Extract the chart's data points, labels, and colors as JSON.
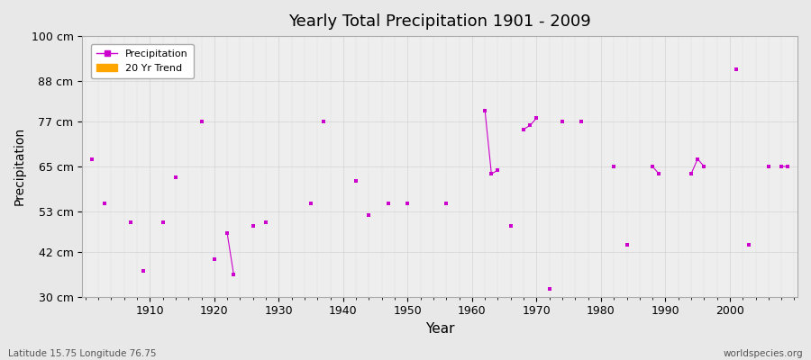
{
  "title": "Yearly Total Precipitation 1901 - 2009",
  "xlabel": "Year",
  "ylabel": "Precipitation",
  "footnote_left": "Latitude 15.75 Longitude 76.75",
  "footnote_right": "worldspecies.org",
  "line_color": "#CC00CC",
  "marker_color": "#CC00CC",
  "trend_color": "#FFA500",
  "bg_color": "#E8E8E8",
  "plot_bg_color": "#EEEEEE",
  "grid_color": "#CCCCCC",
  "ylim": [
    30,
    100
  ],
  "yticks": [
    30,
    42,
    53,
    65,
    77,
    88,
    100
  ],
  "ytick_labels": [
    "30 cm",
    "42 cm",
    "53 cm",
    "65 cm",
    "77 cm",
    "88 cm",
    "100 cm"
  ],
  "years": [
    1901,
    1902,
    1903,
    1904,
    1905,
    1906,
    1907,
    1908,
    1909,
    1910,
    1911,
    1912,
    1913,
    1914,
    1915,
    1916,
    1917,
    1918,
    1919,
    1920,
    1921,
    1922,
    1923,
    1924,
    1925,
    1926,
    1927,
    1928,
    1929,
    1930,
    1931,
    1932,
    1933,
    1934,
    1935,
    1936,
    1937,
    1938,
    1939,
    1940,
    1941,
    1942,
    1943,
    1944,
    1945,
    1946,
    1947,
    1948,
    1949,
    1950,
    1951,
    1952,
    1953,
    1954,
    1955,
    1956,
    1957,
    1958,
    1959,
    1960,
    1961,
    1962,
    1963,
    1964,
    1965,
    1966,
    1967,
    1968,
    1969,
    1970,
    1971,
    1972,
    1973,
    1974,
    1975,
    1976,
    1977,
    1978,
    1979,
    1980,
    1981,
    1982,
    1983,
    1984,
    1985,
    1986,
    1987,
    1988,
    1989,
    1990,
    1991,
    1992,
    1993,
    1994,
    1995,
    1996,
    1997,
    1998,
    1999,
    2000,
    2001,
    2002,
    2003,
    2004,
    2005,
    2006,
    2007,
    2008,
    2009
  ],
  "precip": [
    67,
    null,
    55,
    null,
    null,
    null,
    50,
    null,
    37,
    null,
    null,
    50,
    null,
    62,
    null,
    null,
    null,
    77,
    null,
    40,
    null,
    47,
    36,
    null,
    null,
    49,
    null,
    50,
    null,
    null,
    null,
    null,
    null,
    null,
    55,
    null,
    77,
    null,
    null,
    null,
    null,
    61,
    null,
    52,
    null,
    null,
    55,
    null,
    null,
    55,
    null,
    null,
    null,
    null,
    null,
    55,
    null,
    null,
    null,
    null,
    null,
    80,
    63,
    64,
    null,
    49,
    null,
    75,
    76,
    78,
    null,
    32,
    null,
    77,
    null,
    null,
    77,
    null,
    null,
    null,
    null,
    65,
    null,
    44,
    null,
    null,
    null,
    65,
    63,
    null,
    null,
    null,
    null,
    63,
    67,
    65,
    null,
    null,
    null,
    null,
    91,
    null,
    44,
    null,
    null,
    65,
    null,
    65,
    65
  ]
}
